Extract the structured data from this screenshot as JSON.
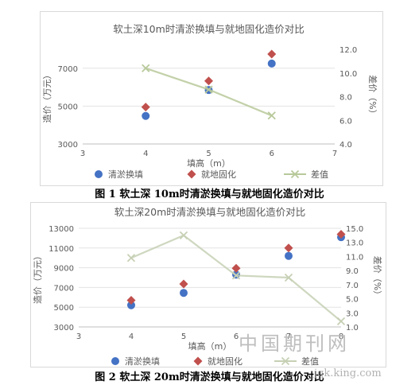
{
  "charts": [
    {
      "caption": "图 1 软土深 10m时清淤换填与就地固化造价对比",
      "chart_data": {
        "type": "scatter",
        "title": "软土深10m时清淤换填与就地固化造价对比",
        "xlabel": "填高（m）",
        "ylabel": "造价（万元）",
        "y2label": "差价（%）",
        "xlim": [
          3,
          7
        ],
        "ylim": [
          3000,
          8000
        ],
        "y2lim": [
          4.0,
          12.0
        ],
        "xticks": [
          "3",
          "4",
          "5",
          "6",
          "7"
        ],
        "yticks": [
          "3000",
          "5000",
          "7000"
        ],
        "y2ticks": [
          "4.0",
          "6.0",
          "8.0",
          "10.0",
          "12.0"
        ],
        "legend_position": "bottom",
        "series": [
          {
            "name": "清淤换填",
            "axis": "left",
            "marker": "circle",
            "color": "#4472C4",
            "points": [
              [
                4,
                4480
              ],
              [
                5,
                5850
              ],
              [
                6,
                7250
              ]
            ]
          },
          {
            "name": "就地固化",
            "axis": "left",
            "marker": "diamond",
            "color": "#C0504D",
            "points": [
              [
                4,
                4950
              ],
              [
                5,
                6330
              ],
              [
                6,
                7750
              ]
            ]
          },
          {
            "name": "差值",
            "axis": "right",
            "marker": "x",
            "color": "#B8C99A",
            "line": true,
            "points": [
              [
                4,
                10.4
              ],
              [
                5,
                8.6
              ],
              [
                6,
                6.4
              ]
            ]
          }
        ]
      }
    },
    {
      "caption": "图 2 软土深 20m时清淤换填与就地固化造价对比",
      "chart_data": {
        "type": "scatter",
        "title": "软土深20m时清淤换填与就地固化造价对比",
        "xlabel": "填高（m）",
        "ylabel": "造价（万元）",
        "y2label": "差价（%）",
        "xlim": [
          3,
          8
        ],
        "ylim": [
          3000,
          13000
        ],
        "y2lim": [
          1.0,
          15.0
        ],
        "xticks": [
          "3",
          "4",
          "5",
          "6",
          "7",
          "8"
        ],
        "yticks": [
          "3000",
          "5000",
          "7000",
          "9000",
          "11000",
          "13000"
        ],
        "y2ticks": [
          "1.0",
          "3.0",
          "5.0",
          "7.0",
          "9.0",
          "11.0",
          "13.0",
          "15.0"
        ],
        "legend_position": "bottom",
        "series": [
          {
            "name": "清淤换填",
            "axis": "left",
            "marker": "circle",
            "color": "#4472C4",
            "points": [
              [
                4,
                5200
              ],
              [
                5,
                6450
              ],
              [
                6,
                8300
              ],
              [
                7,
                10200
              ],
              [
                8,
                12100
              ]
            ]
          },
          {
            "name": "就地固化",
            "axis": "left",
            "marker": "diamond",
            "color": "#C0504D",
            "points": [
              [
                4,
                5700
              ],
              [
                5,
                7350
              ],
              [
                6,
                8950
              ],
              [
                7,
                11000
              ],
              [
                8,
                12400
              ]
            ]
          },
          {
            "name": "差值",
            "axis": "right",
            "marker": "x",
            "color": "#C6D0B4",
            "line": true,
            "points": [
              [
                4,
                10.8
              ],
              [
                5,
                14.0
              ],
              [
                6,
                8.3
              ],
              [
                7,
                8.0
              ],
              [
                8,
                1.8
              ]
            ]
          }
        ]
      }
    }
  ],
  "watermark": {
    "text": "中国期刊网",
    "site": "jqk.king.com"
  }
}
